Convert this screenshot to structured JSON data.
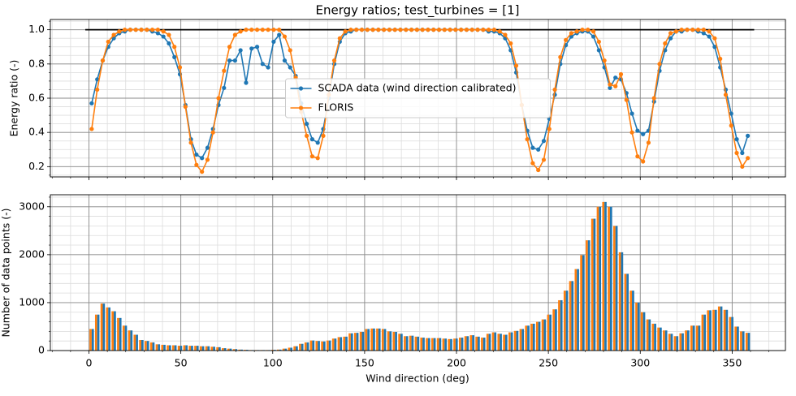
{
  "chart_data": [
    {
      "type": "line",
      "title": "Energy ratios; test_turbines = [1]",
      "ylabel": "Energy ratio (-)",
      "x": [
        1.5,
        4.5,
        7.5,
        10.5,
        13.5,
        16.5,
        19.5,
        22.5,
        25.5,
        28.5,
        31.5,
        34.5,
        37.5,
        40.5,
        43.5,
        46.5,
        49.5,
        52.5,
        55.5,
        58.5,
        61.5,
        64.5,
        67.5,
        70.5,
        73.5,
        76.5,
        79.5,
        82.5,
        85.5,
        88.5,
        91.5,
        94.5,
        97.5,
        100.5,
        103.5,
        106.5,
        109.5,
        112.5,
        115.5,
        118.5,
        121.5,
        124.5,
        127.5,
        130.5,
        133.5,
        136.5,
        139.5,
        142.5,
        145.5,
        148.5,
        151.5,
        154.5,
        157.5,
        160.5,
        163.5,
        166.5,
        169.5,
        172.5,
        175.5,
        178.5,
        181.5,
        184.5,
        187.5,
        190.5,
        193.5,
        196.5,
        199.5,
        202.5,
        205.5,
        208.5,
        211.5,
        214.5,
        217.5,
        220.5,
        223.5,
        226.5,
        229.5,
        232.5,
        235.5,
        238.5,
        241.5,
        244.5,
        247.5,
        250.5,
        253.5,
        256.5,
        259.5,
        262.5,
        265.5,
        268.5,
        271.5,
        274.5,
        277.5,
        280.5,
        283.5,
        286.5,
        289.5,
        292.5,
        295.5,
        298.5,
        301.5,
        304.5,
        307.5,
        310.5,
        313.5,
        316.5,
        319.5,
        322.5,
        325.5,
        328.5,
        331.5,
        334.5,
        337.5,
        340.5,
        343.5,
        346.5,
        349.5,
        352.5,
        355.5,
        358.5
      ],
      "series": [
        {
          "name": "SCADA data (wind direction calibrated)",
          "color": "#1f77b4",
          "values": [
            0.57,
            0.71,
            0.82,
            0.9,
            0.95,
            0.98,
            0.99,
            1.0,
            1.0,
            1.0,
            1.0,
            0.99,
            0.98,
            0.96,
            0.92,
            0.84,
            0.74,
            0.56,
            0.36,
            0.27,
            0.25,
            0.31,
            0.42,
            0.56,
            0.66,
            0.82,
            0.82,
            0.88,
            0.69,
            0.89,
            0.9,
            0.8,
            0.78,
            0.93,
            0.97,
            0.82,
            0.78,
            0.73,
            0.57,
            0.45,
            0.36,
            0.34,
            0.42,
            0.6,
            0.8,
            0.93,
            0.98,
            0.99,
            1.0,
            1.0,
            1.0,
            1.0,
            1.0,
            1.0,
            1.0,
            1.0,
            1.0,
            1.0,
            1.0,
            1.0,
            1.0,
            1.0,
            1.0,
            1.0,
            1.0,
            1.0,
            1.0,
            1.0,
            1.0,
            1.0,
            1.0,
            1.0,
            0.99,
            0.99,
            0.98,
            0.95,
            0.88,
            0.75,
            0.56,
            0.41,
            0.31,
            0.3,
            0.35,
            0.48,
            0.62,
            0.8,
            0.91,
            0.96,
            0.98,
            0.99,
            0.99,
            0.96,
            0.88,
            0.78,
            0.66,
            0.72,
            0.71,
            0.63,
            0.51,
            0.41,
            0.39,
            0.41,
            0.58,
            0.76,
            0.88,
            0.95,
            0.99,
            0.99,
            1.0,
            1.0,
            0.99,
            0.98,
            0.96,
            0.9,
            0.78,
            0.65,
            0.51,
            0.36,
            0.28,
            0.38
          ]
        },
        {
          "name": "FLORIS",
          "color": "#ff7f0e",
          "values": [
            0.42,
            0.65,
            0.82,
            0.93,
            0.97,
            0.99,
            1.0,
            1.0,
            1.0,
            1.0,
            1.0,
            1.0,
            1.0,
            0.99,
            0.97,
            0.9,
            0.78,
            0.55,
            0.34,
            0.21,
            0.17,
            0.24,
            0.4,
            0.6,
            0.76,
            0.9,
            0.97,
            0.99,
            1.0,
            1.0,
            1.0,
            1.0,
            1.0,
            1.0,
            1.0,
            0.96,
            0.88,
            0.72,
            0.52,
            0.38,
            0.26,
            0.25,
            0.38,
            0.62,
            0.82,
            0.95,
            0.99,
            1.0,
            1.0,
            1.0,
            1.0,
            1.0,
            1.0,
            1.0,
            1.0,
            1.0,
            1.0,
            1.0,
            1.0,
            1.0,
            1.0,
            1.0,
            1.0,
            1.0,
            1.0,
            1.0,
            1.0,
            1.0,
            1.0,
            1.0,
            1.0,
            1.0,
            1.0,
            1.0,
            0.99,
            0.97,
            0.92,
            0.79,
            0.56,
            0.36,
            0.22,
            0.18,
            0.24,
            0.42,
            0.65,
            0.84,
            0.94,
            0.98,
            0.99,
            1.0,
            1.0,
            0.99,
            0.93,
            0.82,
            0.68,
            0.67,
            0.74,
            0.59,
            0.4,
            0.26,
            0.23,
            0.34,
            0.6,
            0.8,
            0.92,
            0.98,
            0.99,
            1.0,
            1.0,
            1.0,
            1.0,
            1.0,
            0.99,
            0.95,
            0.83,
            0.62,
            0.44,
            0.28,
            0.2,
            0.25
          ]
        }
      ],
      "reference_line": {
        "y": 1,
        "x": [
          -2,
          362
        ],
        "color": "#000000"
      },
      "xlim": [
        -21,
        379
      ],
      "xticks": [
        0,
        50,
        100,
        150,
        200,
        250,
        300,
        350
      ],
      "ylim": [
        0.14,
        1.06
      ],
      "yticks": [
        0.2,
        0.4,
        0.6,
        0.8,
        {
          "value": 1,
          "label": "1.0"
        }
      ],
      "grid": true,
      "minor_grid": {
        "x": 5,
        "y": 4
      },
      "legend": "center"
    },
    {
      "type": "bar",
      "xlabel": "Wind direction (deg)",
      "ylabel": "Number of data points (-)",
      "x": [
        1.5,
        4.5,
        7.5,
        10.5,
        13.5,
        16.5,
        19.5,
        22.5,
        25.5,
        28.5,
        31.5,
        34.5,
        37.5,
        40.5,
        43.5,
        46.5,
        49.5,
        52.5,
        55.5,
        58.5,
        61.5,
        64.5,
        67.5,
        70.5,
        73.5,
        76.5,
        79.5,
        82.5,
        85.5,
        88.5,
        91.5,
        94.5,
        97.5,
        100.5,
        103.5,
        106.5,
        109.5,
        112.5,
        115.5,
        118.5,
        121.5,
        124.5,
        127.5,
        130.5,
        133.5,
        136.5,
        139.5,
        142.5,
        145.5,
        148.5,
        151.5,
        154.5,
        157.5,
        160.5,
        163.5,
        166.5,
        169.5,
        172.5,
        175.5,
        178.5,
        181.5,
        184.5,
        187.5,
        190.5,
        193.5,
        196.5,
        199.5,
        202.5,
        205.5,
        208.5,
        211.5,
        214.5,
        217.5,
        220.5,
        223.5,
        226.5,
        229.5,
        232.5,
        235.5,
        238.5,
        241.5,
        244.5,
        247.5,
        250.5,
        253.5,
        256.5,
        259.5,
        262.5,
        265.5,
        268.5,
        271.5,
        274.5,
        277.5,
        280.5,
        283.5,
        286.5,
        289.5,
        292.5,
        295.5,
        298.5,
        301.5,
        304.5,
        307.5,
        310.5,
        313.5,
        316.5,
        319.5,
        322.5,
        325.5,
        328.5,
        331.5,
        334.5,
        337.5,
        340.5,
        343.5,
        346.5,
        349.5,
        352.5,
        355.5,
        358.5
      ],
      "series": [
        {
          "color": "#ff7f0e",
          "values": [
            450,
            750,
            980,
            900,
            820,
            680,
            520,
            420,
            330,
            220,
            200,
            170,
            130,
            120,
            110,
            110,
            100,
            110,
            100,
            100,
            90,
            90,
            80,
            70,
            50,
            40,
            30,
            20,
            15,
            10,
            10,
            10,
            10,
            15,
            20,
            40,
            60,
            90,
            140,
            170,
            210,
            200,
            190,
            210,
            250,
            280,
            290,
            360,
            370,
            390,
            450,
            460,
            460,
            450,
            400,
            390,
            350,
            300,
            310,
            290,
            270,
            260,
            260,
            260,
            250,
            240,
            250,
            270,
            300,
            320,
            290,
            270,
            350,
            380,
            350,
            330,
            380,
            410,
            450,
            520,
            560,
            600,
            650,
            750,
            860,
            1050,
            1250,
            1450,
            1700,
            1990,
            2300,
            2750,
            3000,
            3100,
            3000,
            2600,
            2050,
            1600,
            1250,
            1000,
            800,
            650,
            560,
            480,
            420,
            350,
            300,
            360,
            420,
            520,
            520,
            750,
            840,
            850,
            920,
            850,
            700,
            500,
            400,
            370
          ]
        },
        {
          "color": "#1f77b4",
          "values": [
            450,
            750,
            980,
            900,
            820,
            680,
            520,
            420,
            330,
            220,
            200,
            170,
            130,
            120,
            110,
            110,
            100,
            110,
            100,
            100,
            90,
            90,
            80,
            70,
            50,
            40,
            30,
            20,
            15,
            10,
            10,
            10,
            10,
            15,
            20,
            40,
            60,
            90,
            140,
            170,
            210,
            200,
            190,
            210,
            250,
            280,
            290,
            360,
            370,
            390,
            450,
            460,
            460,
            450,
            400,
            390,
            350,
            300,
            310,
            290,
            270,
            260,
            260,
            260,
            250,
            240,
            250,
            270,
            300,
            320,
            290,
            270,
            350,
            380,
            350,
            330,
            380,
            410,
            450,
            520,
            560,
            600,
            650,
            750,
            860,
            1050,
            1250,
            1450,
            1700,
            1990,
            2300,
            2750,
            3000,
            3100,
            3000,
            2600,
            2050,
            1600,
            1250,
            1000,
            800,
            650,
            560,
            480,
            420,
            350,
            300,
            360,
            420,
            520,
            520,
            750,
            840,
            850,
            920,
            850,
            700,
            500,
            400,
            370
          ]
        }
      ],
      "xlim": [
        -21,
        379
      ],
      "xticks": [
        0,
        50,
        100,
        150,
        200,
        250,
        300,
        350
      ],
      "ylim": [
        0,
        3250
      ],
      "yticks": [
        0,
        1000,
        2000,
        3000
      ],
      "grid": true,
      "minor_grid": {
        "x": 5,
        "y": 5
      }
    }
  ]
}
